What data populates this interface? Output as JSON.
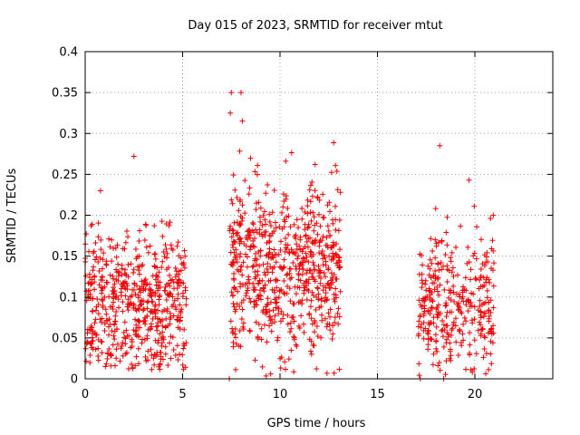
{
  "chart_data": {
    "type": "scatter",
    "title": "Day 015 of 2023, SRMTID for receiver mtut",
    "xlabel": "GPS time / hours",
    "ylabel": "SRMTID / TECUs",
    "xlim": [
      0,
      24
    ],
    "ylim": [
      0,
      0.4
    ],
    "x_ticks": [
      0,
      5,
      10,
      15,
      20
    ],
    "y_ticks": [
      0,
      0.05,
      0.1,
      0.15,
      0.2,
      0.25,
      0.3,
      0.35,
      0.4
    ],
    "x_tick_labels": [
      "0",
      "5",
      "10",
      "15",
      "20"
    ],
    "y_tick_labels": [
      "0",
      "0.05",
      "0.1",
      "0.15",
      "0.2",
      "0.25",
      "0.3",
      "0.35",
      "0.4"
    ],
    "grid": true,
    "marker": "plus",
    "series": [
      {
        "name": "SRMTID",
        "color": "#ee0000",
        "clusters": [
          {
            "x_range": [
              0.0,
              5.2
            ],
            "n": 560,
            "y_center": 0.09,
            "y_spread": 0.045,
            "y_min": 0.01,
            "y_max": 0.27
          },
          {
            "x_range": [
              7.4,
              13.1
            ],
            "n": 680,
            "y_center": 0.135,
            "y_spread": 0.05,
            "y_min": 0.003,
            "y_max": 0.35
          },
          {
            "x_range": [
              17.1,
              21.0
            ],
            "n": 340,
            "y_center": 0.09,
            "y_spread": 0.042,
            "y_min": 0.003,
            "y_max": 0.285
          }
        ],
        "highlights": [
          {
            "x": 7.5,
            "y": 0.35
          },
          {
            "x": 8.0,
            "y": 0.35
          },
          {
            "x": 7.45,
            "y": 0.325
          },
          {
            "x": 18.2,
            "y": 0.285
          },
          {
            "x": 2.5,
            "y": 0.272
          },
          {
            "x": 11.8,
            "y": 0.262
          },
          {
            "x": 19.7,
            "y": 0.243
          },
          {
            "x": 7.4,
            "y": 0.0
          },
          {
            "x": 17.2,
            "y": 0.0
          },
          {
            "x": 18.4,
            "y": 0.0
          }
        ]
      }
    ]
  }
}
